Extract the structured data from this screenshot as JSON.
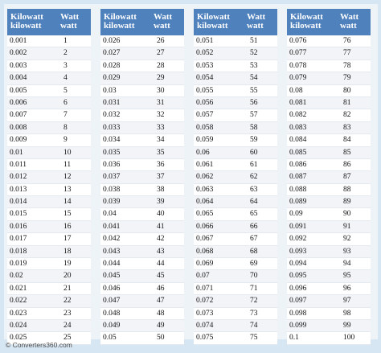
{
  "header": {
    "unit_from_top": "Kilowatt",
    "unit_from_bottom": "kilowatt",
    "unit_to_top": "Watt",
    "unit_to_bottom": "watt"
  },
  "columns": [
    {
      "rows": [
        [
          "0.001",
          "1"
        ],
        [
          "0.002",
          "2"
        ],
        [
          "0.003",
          "3"
        ],
        [
          "0.004",
          "4"
        ],
        [
          "0.005",
          "5"
        ],
        [
          "0.006",
          "6"
        ],
        [
          "0.007",
          "7"
        ],
        [
          "0.008",
          "8"
        ],
        [
          "0.009",
          "9"
        ],
        [
          "0.01",
          "10"
        ],
        [
          "0.011",
          "11"
        ],
        [
          "0.012",
          "12"
        ],
        [
          "0.013",
          "13"
        ],
        [
          "0.014",
          "14"
        ],
        [
          "0.015",
          "15"
        ],
        [
          "0.016",
          "16"
        ],
        [
          "0.017",
          "17"
        ],
        [
          "0.018",
          "18"
        ],
        [
          "0.019",
          "19"
        ],
        [
          "0.02",
          "20"
        ],
        [
          "0.021",
          "21"
        ],
        [
          "0.022",
          "22"
        ],
        [
          "0.023",
          "23"
        ],
        [
          "0.024",
          "24"
        ],
        [
          "0.025",
          "25"
        ]
      ]
    },
    {
      "rows": [
        [
          "0.026",
          "26"
        ],
        [
          "0.027",
          "27"
        ],
        [
          "0.028",
          "28"
        ],
        [
          "0.029",
          "29"
        ],
        [
          "0.03",
          "30"
        ],
        [
          "0.031",
          "31"
        ],
        [
          "0.032",
          "32"
        ],
        [
          "0.033",
          "33"
        ],
        [
          "0.034",
          "34"
        ],
        [
          "0.035",
          "35"
        ],
        [
          "0.036",
          "36"
        ],
        [
          "0.037",
          "37"
        ],
        [
          "0.038",
          "38"
        ],
        [
          "0.039",
          "39"
        ],
        [
          "0.04",
          "40"
        ],
        [
          "0.041",
          "41"
        ],
        [
          "0.042",
          "42"
        ],
        [
          "0.043",
          "43"
        ],
        [
          "0.044",
          "44"
        ],
        [
          "0.045",
          "45"
        ],
        [
          "0.046",
          "46"
        ],
        [
          "0.047",
          "47"
        ],
        [
          "0.048",
          "48"
        ],
        [
          "0.049",
          "49"
        ],
        [
          "0.05",
          "50"
        ]
      ]
    },
    {
      "rows": [
        [
          "0.051",
          "51"
        ],
        [
          "0.052",
          "52"
        ],
        [
          "0.053",
          "53"
        ],
        [
          "0.054",
          "54"
        ],
        [
          "0.055",
          "55"
        ],
        [
          "0.056",
          "56"
        ],
        [
          "0.057",
          "57"
        ],
        [
          "0.058",
          "58"
        ],
        [
          "0.059",
          "59"
        ],
        [
          "0.06",
          "60"
        ],
        [
          "0.061",
          "61"
        ],
        [
          "0.062",
          "62"
        ],
        [
          "0.063",
          "63"
        ],
        [
          "0.064",
          "64"
        ],
        [
          "0.065",
          "65"
        ],
        [
          "0.066",
          "66"
        ],
        [
          "0.067",
          "67"
        ],
        [
          "0.068",
          "68"
        ],
        [
          "0.069",
          "69"
        ],
        [
          "0.07",
          "70"
        ],
        [
          "0.071",
          "71"
        ],
        [
          "0.072",
          "72"
        ],
        [
          "0.073",
          "73"
        ],
        [
          "0.074",
          "74"
        ],
        [
          "0.075",
          "75"
        ]
      ]
    },
    {
      "rows": [
        [
          "0.076",
          "76"
        ],
        [
          "0.077",
          "77"
        ],
        [
          "0.078",
          "78"
        ],
        [
          "0.079",
          "79"
        ],
        [
          "0.08",
          "80"
        ],
        [
          "0.081",
          "81"
        ],
        [
          "0.082",
          "82"
        ],
        [
          "0.083",
          "83"
        ],
        [
          "0.084",
          "84"
        ],
        [
          "0.085",
          "85"
        ],
        [
          "0.086",
          "86"
        ],
        [
          "0.087",
          "87"
        ],
        [
          "0.088",
          "88"
        ],
        [
          "0.089",
          "89"
        ],
        [
          "0.09",
          "90"
        ],
        [
          "0.091",
          "91"
        ],
        [
          "0.092",
          "92"
        ],
        [
          "0.093",
          "93"
        ],
        [
          "0.094",
          "94"
        ],
        [
          "0.095",
          "95"
        ],
        [
          "0.096",
          "96"
        ],
        [
          "0.097",
          "97"
        ],
        [
          "0.098",
          "98"
        ],
        [
          "0.099",
          "99"
        ],
        [
          "0.1",
          "100"
        ]
      ]
    }
  ],
  "footer": {
    "credit": "© Converters360.com"
  },
  "colors": {
    "header_bg": "#4f81bd",
    "page_bg": "#d7e6f3"
  }
}
